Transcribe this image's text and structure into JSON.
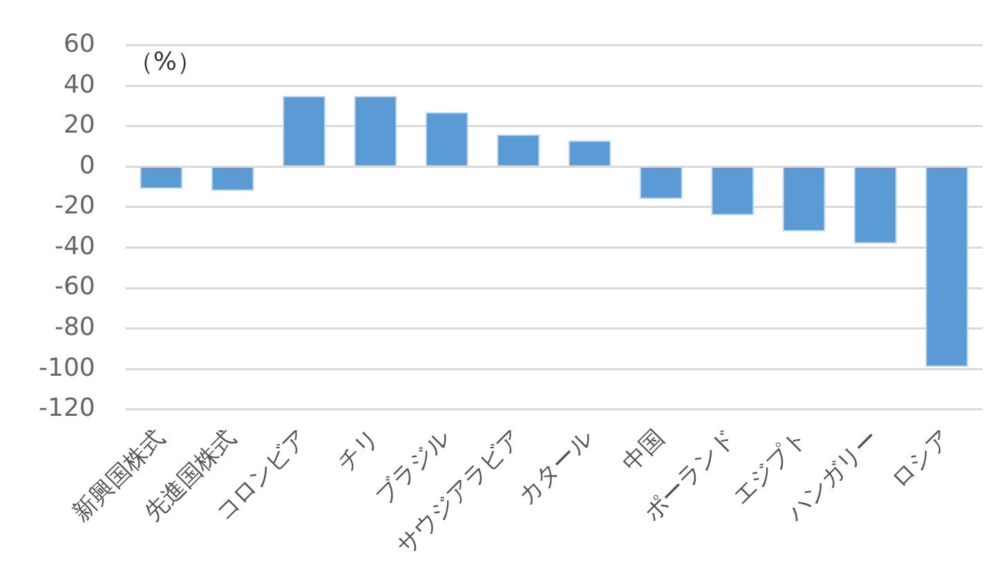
{
  "chart_data": {
    "type": "bar",
    "ylabel": "（%）",
    "categories": [
      "新興国株式",
      "先進国株式",
      "コロンビア",
      "チリ",
      "ブラジル",
      "サウジアラビア",
      "カタール",
      "中国",
      "ポーランド",
      "エジプト",
      "ハンガリー",
      "ロシア"
    ],
    "values": [
      -11,
      -12,
      35,
      35,
      27,
      16,
      13,
      -16,
      -24,
      -32,
      -38,
      -99
    ],
    "color": "#5b9bd5",
    "ylim": [
      -120,
      60
    ],
    "yticks": [
      -120,
      -100,
      -80,
      -60,
      -40,
      -20,
      0,
      20,
      40,
      60
    ],
    "grid": "y",
    "legend": false
  }
}
